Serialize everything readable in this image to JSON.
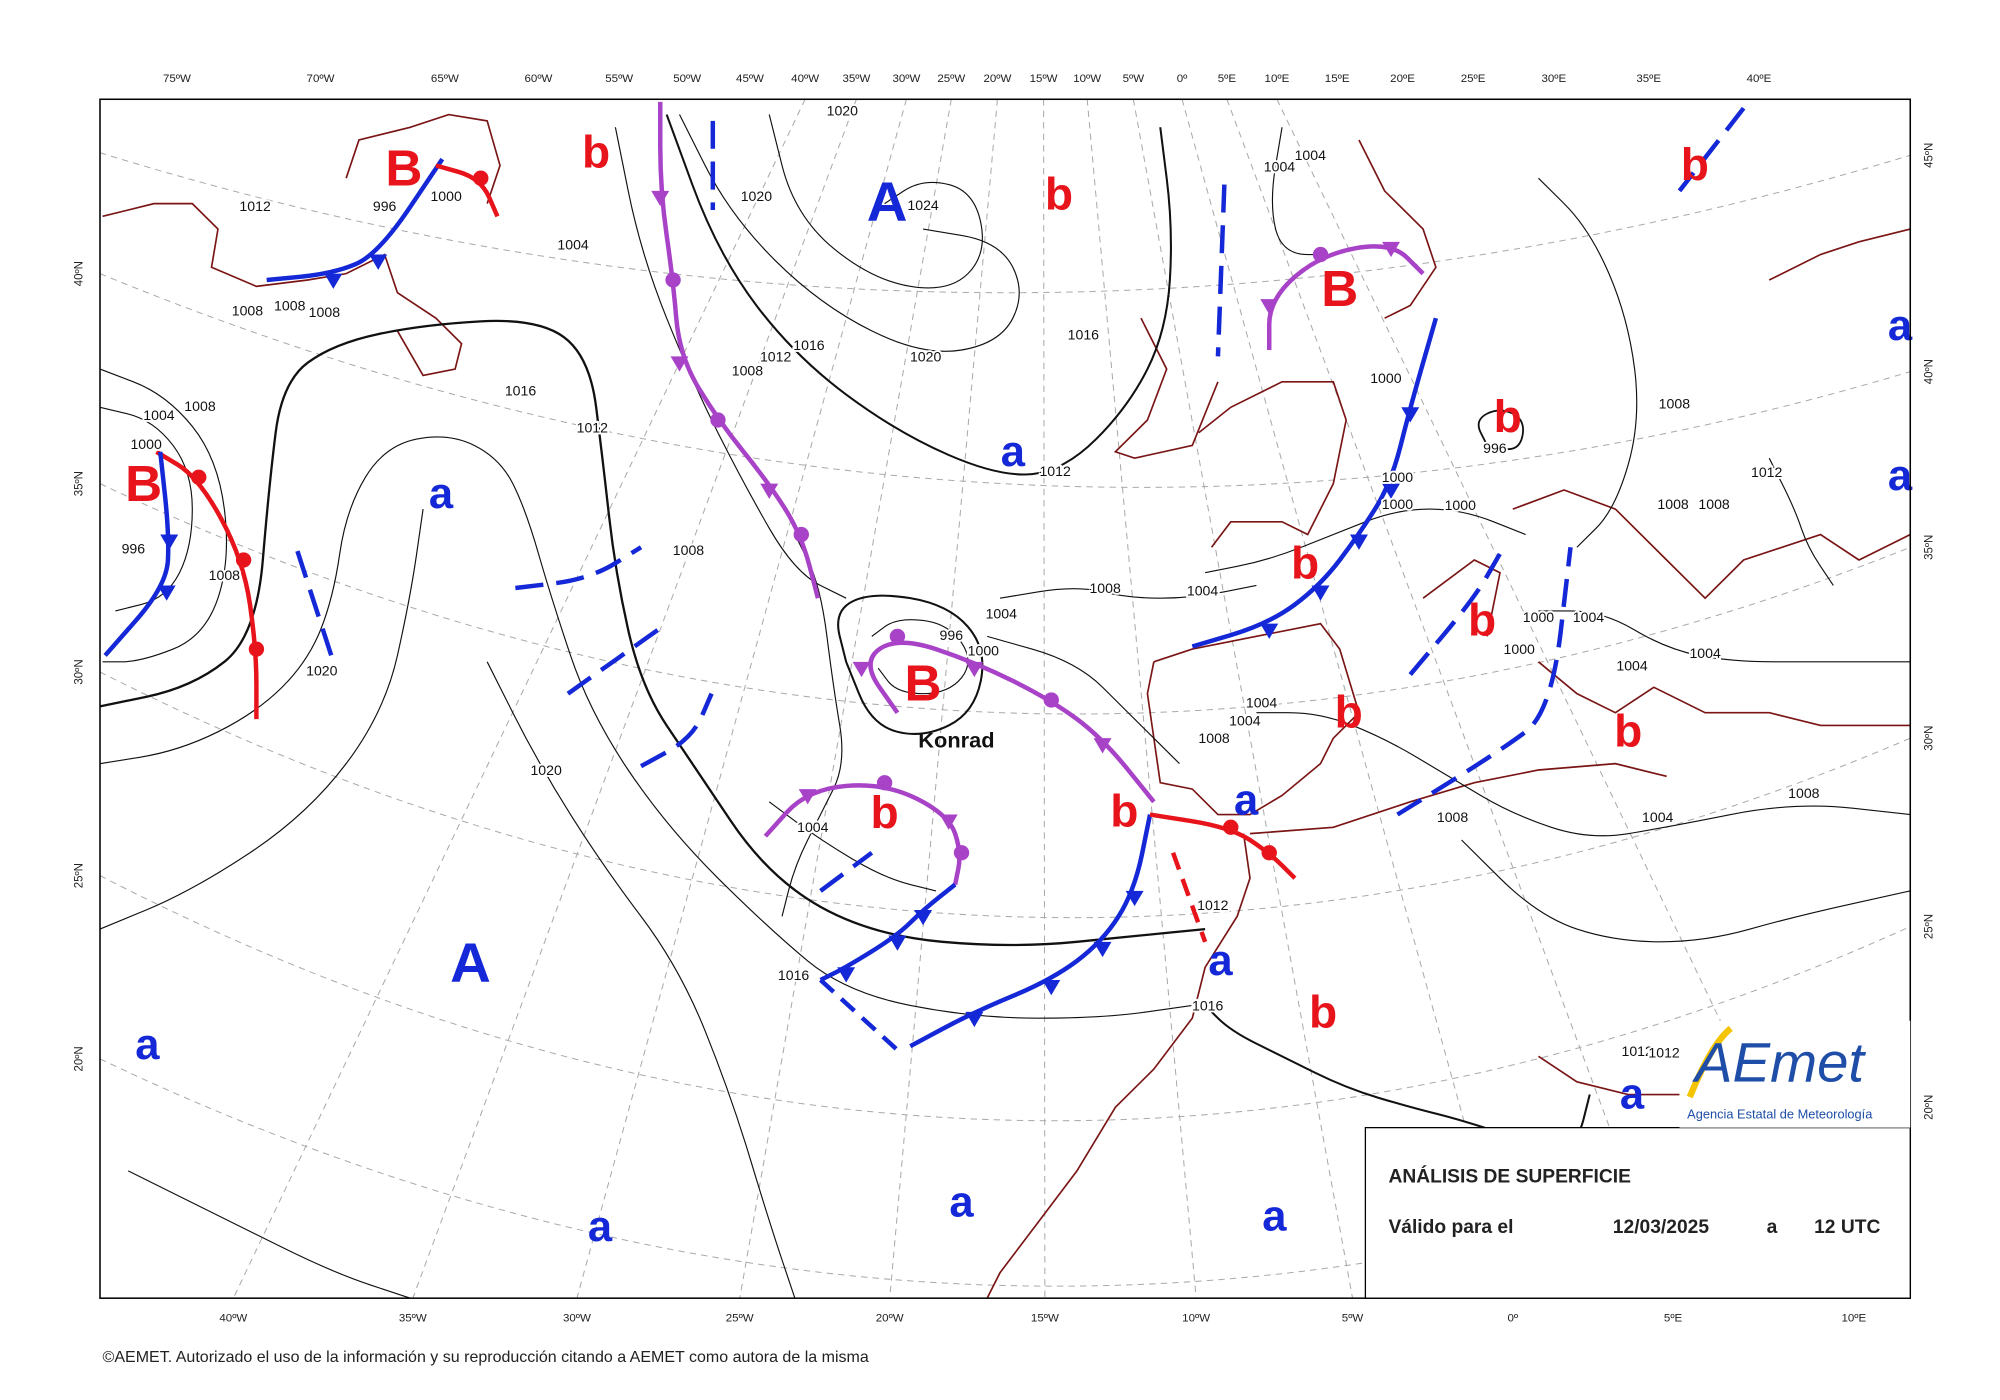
{
  "top_longitudes": [
    "75ºW",
    "70ºW",
    "65ºW",
    "60ºW",
    "55ºW",
    "50ºW",
    "45ºW",
    "40ºW",
    "35ºW",
    "30ºW",
    "25ºW",
    "20ºW",
    "15ºW",
    "10ºW",
    "5ºW",
    "0º",
    "5ºE",
    "10ºE",
    "15ºE",
    "20ºE",
    "25ºE",
    "30ºE",
    "35ºE",
    "40ºE"
  ],
  "bottom_longitudes": [
    "40ºW",
    "35ºW",
    "30ºW",
    "25ºW",
    "20ºW",
    "15ºW",
    "10ºW",
    "5ºW",
    "0º",
    "5ºE",
    "10ºE"
  ],
  "left_latitudes": [
    "40ºN",
    "35ºN",
    "30ºN",
    "25ºN",
    "20ºN"
  ],
  "right_latitudes": [
    "45ºN",
    "40ºN",
    "35ºN",
    "30ºN",
    "25ºN",
    "20ºN"
  ],
  "pressure_centers": [
    {
      "label": "B",
      "color": "#e8141b"
    },
    {
      "label": "b",
      "color": "#e8141b"
    },
    {
      "label": "A",
      "color": "#1428d8"
    },
    {
      "label": "b",
      "color": "#e8141b"
    },
    {
      "label": "b",
      "color": "#e8141b"
    },
    {
      "label": "B",
      "color": "#e8141b"
    },
    {
      "label": "a",
      "color": "#1428d8"
    },
    {
      "label": "b",
      "color": "#e8141b"
    },
    {
      "label": "a",
      "color": "#1428d8"
    },
    {
      "label": "B",
      "color": "#e8141b"
    },
    {
      "label": "a",
      "color": "#1428d8"
    },
    {
      "label": "a",
      "color": "#1428d8"
    },
    {
      "label": "b",
      "color": "#e8141b"
    },
    {
      "label": "b",
      "color": "#e8141b"
    },
    {
      "label": "B",
      "color": "#e8141b"
    },
    {
      "label": "b",
      "color": "#e8141b"
    },
    {
      "label": "b",
      "color": "#e8141b"
    },
    {
      "label": "a",
      "color": "#1428d8"
    },
    {
      "label": "b",
      "color": "#e8141b"
    },
    {
      "label": "b",
      "color": "#e8141b"
    },
    {
      "label": "a",
      "color": "#1428d8"
    },
    {
      "label": "A",
      "color": "#1428d8"
    },
    {
      "label": "b",
      "color": "#e8141b"
    },
    {
      "label": "a",
      "color": "#1428d8"
    },
    {
      "label": "a",
      "color": "#1428d8"
    },
    {
      "label": "a",
      "color": "#1428d8"
    },
    {
      "label": "a",
      "color": "#1428d8"
    },
    {
      "label": "a",
      "color": "#1428d8"
    }
  ],
  "isobar_labels": [
    "1012",
    "996",
    "1000",
    "1020",
    "1020",
    "1024",
    "1004",
    "1008",
    "1008",
    "1008",
    "1016",
    "1012",
    "1008",
    "1020",
    "1016",
    "1016",
    "1012",
    "1004",
    "1008",
    "1000",
    "996",
    "1008",
    "1008",
    "1012",
    "1008",
    "1004",
    "1004",
    "996",
    "1000",
    "1020",
    "1020",
    "1004",
    "1016",
    "1012",
    "1016",
    "1004",
    "1004",
    "1008",
    "1000",
    "996",
    "1000",
    "1000",
    "1000",
    "1008",
    "1008",
    "1008",
    "1012",
    "1000",
    "1004",
    "1000",
    "1004",
    "1004",
    "1008",
    "1004",
    "1008",
    "1012",
    "1012",
    "1004",
    "1004"
  ],
  "storm_name": "Konrad",
  "legend": {
    "title": "ANÁLISIS DE SUPERFICIE",
    "valid_label": "Válido para el",
    "date": "12/03/2025",
    "at": "a",
    "time": "12 UTC"
  },
  "logo": {
    "name": "AEmet",
    "subtitle": "Agencia Estatal de Meteorología"
  },
  "copyright": "©AEMET. Autorizado el uso de la información y su reproducción citando a AEMET como autora de la misma"
}
